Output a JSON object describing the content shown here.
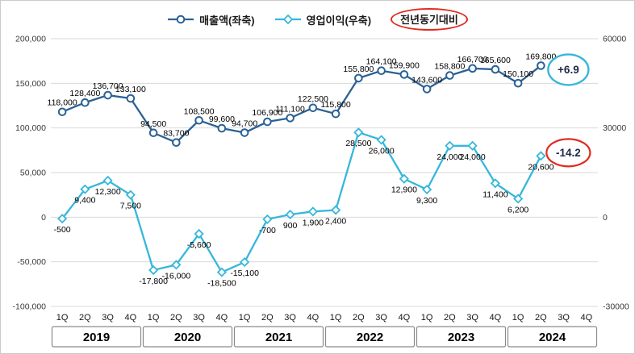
{
  "legend": {
    "revenue": "매출액(좌축)",
    "profit": "영업이익(우축)",
    "yoy": "전년동기대비"
  },
  "colors": {
    "revenue": "#2a6196",
    "profit": "#36b7db",
    "red": "#e02b20",
    "grid": "#d9d9d9",
    "year_box_border": "#8a8a8a"
  },
  "chart_data": {
    "type": "line",
    "title": "",
    "legend_position": "top",
    "grid": "horizontal",
    "categories": [
      "1Q",
      "2Q",
      "3Q",
      "4Q",
      "1Q",
      "2Q",
      "3Q",
      "4Q",
      "1Q",
      "2Q",
      "3Q",
      "4Q",
      "1Q",
      "2Q",
      "3Q",
      "4Q",
      "1Q",
      "2Q",
      "3Q",
      "4Q",
      "1Q",
      "2Q",
      "3Q",
      "4Q"
    ],
    "years": [
      "2019",
      "2020",
      "2021",
      "2022",
      "2023",
      "2024"
    ],
    "series": [
      {
        "id": "revenue",
        "name": "매출액(좌축)",
        "axis": "left",
        "marker": "circle",
        "label_pos": "above",
        "color": "#2a6196",
        "values": [
          118000,
          128400,
          136700,
          133100,
          94500,
          83700,
          108500,
          99600,
          94700,
          106900,
          111100,
          122500,
          115800,
          155800,
          164100,
          159900,
          143600,
          158800,
          166700,
          165600,
          150100,
          169800,
          null,
          null
        ]
      },
      {
        "id": "operating-profit",
        "name": "영업이익(우축)",
        "axis": "right",
        "marker": "diamond",
        "label_pos": "below",
        "color": "#36b7db",
        "values": [
          -500,
          9400,
          12300,
          7500,
          -17800,
          -16000,
          -5600,
          -18500,
          -15100,
          -700,
          900,
          1900,
          2400,
          28500,
          26000,
          12900,
          9300,
          24000,
          24000,
          11400,
          6200,
          20600,
          null,
          null
        ]
      }
    ],
    "left_axis": {
      "min": -100000,
      "max": 200000,
      "ticks": [
        200000,
        150000,
        100000,
        50000,
        0,
        -50000,
        -100000
      ]
    },
    "right_axis": {
      "min": -30000,
      "max": 60000,
      "ticks": [
        60000,
        30000,
        0,
        -30000
      ]
    },
    "annotations": {
      "revenue_yoy": "+6.9",
      "profit_yoy": "-14.2"
    }
  }
}
